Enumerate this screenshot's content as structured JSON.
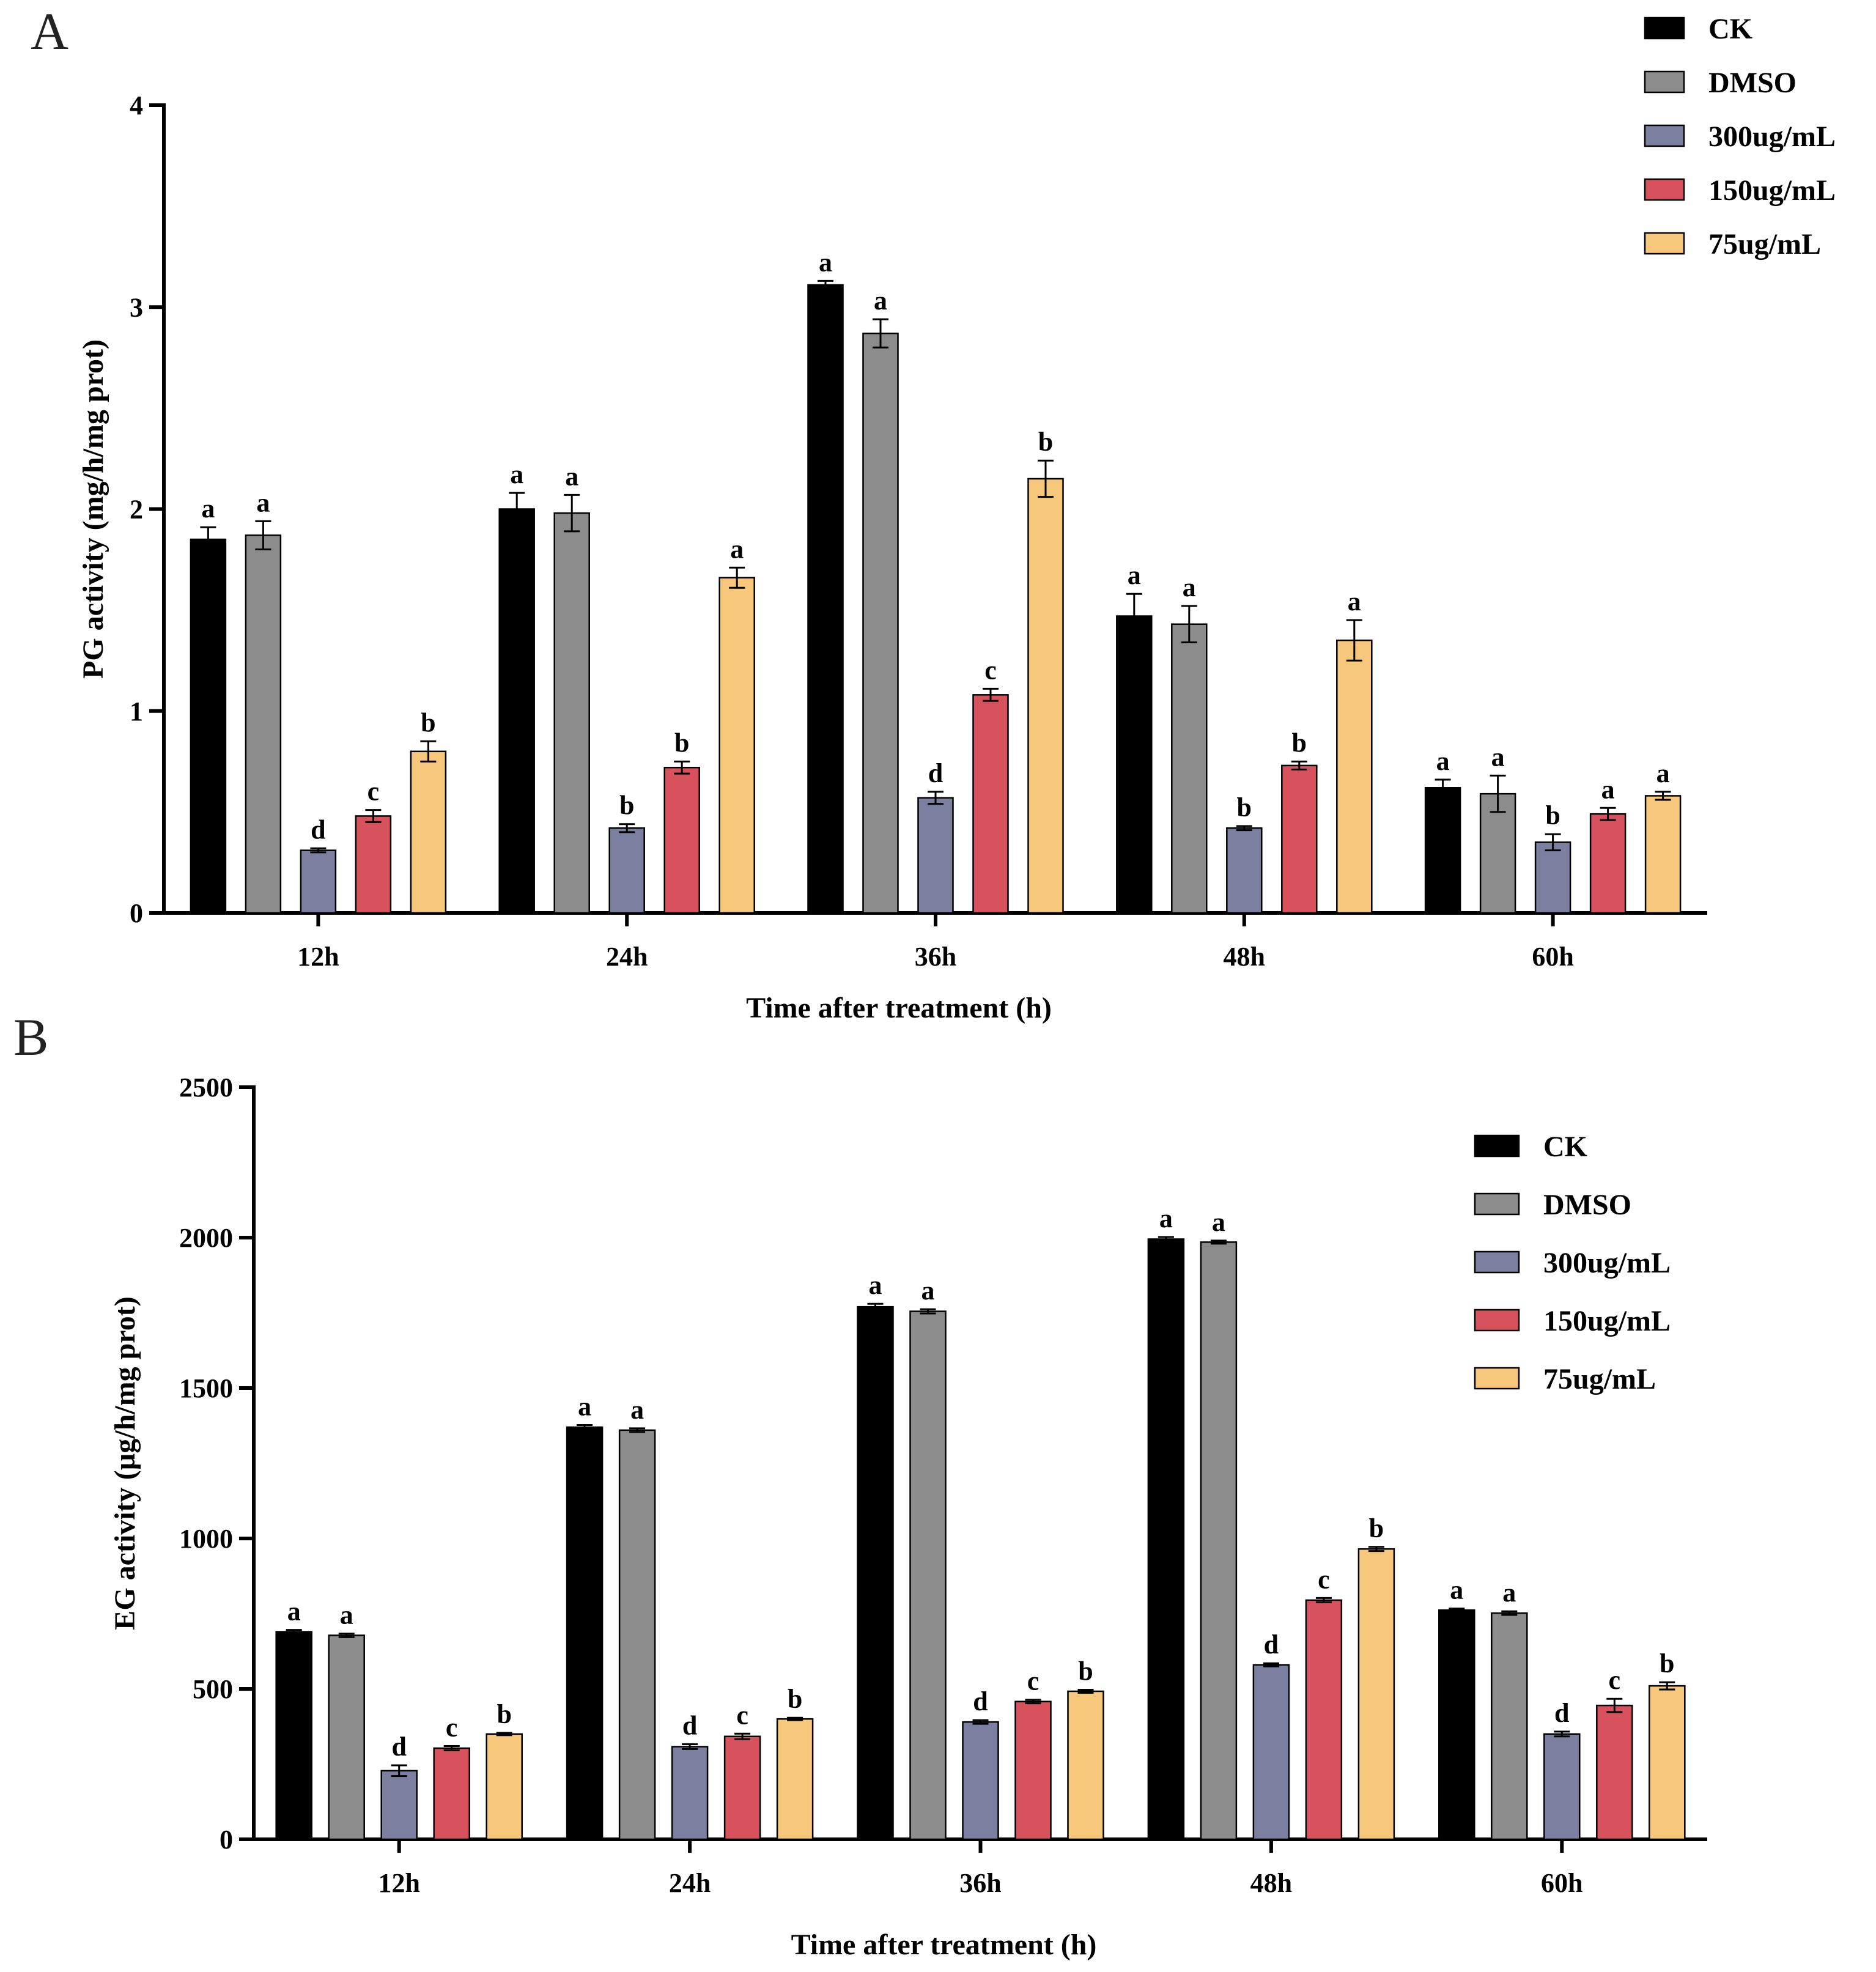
{
  "chart_data": [
    {
      "panel": "A",
      "type": "bar",
      "xlabel": "Time after treatment (h)",
      "ylabel": "PG activity (mg/h/mg prot)",
      "ylim": [
        0,
        4
      ],
      "yticks": [
        0,
        1,
        2,
        3,
        4
      ],
      "categories": [
        "12h",
        "24h",
        "36h",
        "48h",
        "60h"
      ],
      "legend_position": "top-right",
      "series": [
        {
          "name": "CK",
          "color": "#000000",
          "values": [
            1.85,
            2.0,
            3.11,
            1.47,
            0.62
          ],
          "errors": [
            0.06,
            0.08,
            0.02,
            0.11,
            0.04
          ],
          "labels": [
            "a",
            "a",
            "a",
            "a",
            "a"
          ]
        },
        {
          "name": "DMSO",
          "color": "#8c8c8c",
          "values": [
            1.87,
            1.98,
            2.87,
            1.43,
            0.59
          ],
          "errors": [
            0.07,
            0.09,
            0.07,
            0.09,
            0.09
          ],
          "labels": [
            "a",
            "a",
            "a",
            "a",
            "a"
          ]
        },
        {
          "name": "300ug/mL",
          "color": "#7b7fa0",
          "values": [
            0.31,
            0.42,
            0.57,
            0.42,
            0.35
          ],
          "errors": [
            0.01,
            0.02,
            0.03,
            0.01,
            0.04
          ],
          "labels": [
            "d",
            "b",
            "d",
            "b",
            "b"
          ]
        },
        {
          "name": "150ug/mL",
          "color": "#d8525e",
          "values": [
            0.48,
            0.72,
            1.08,
            0.73,
            0.49
          ],
          "errors": [
            0.03,
            0.03,
            0.03,
            0.02,
            0.03
          ],
          "labels": [
            "c",
            "b",
            "c",
            "b",
            "a"
          ]
        },
        {
          "name": "75ug/mL",
          "color": "#f7c77c",
          "values": [
            0.8,
            1.66,
            2.15,
            1.35,
            0.58
          ],
          "errors": [
            0.05,
            0.05,
            0.09,
            0.1,
            0.02
          ],
          "labels": [
            "b",
            "a",
            "b",
            "a",
            "a"
          ]
        }
      ]
    },
    {
      "panel": "B",
      "type": "bar",
      "xlabel": "Time after treatment (h)",
      "ylabel": "EG activity (µg/h/mg prot)",
      "ylim": [
        0,
        2500
      ],
      "yticks": [
        0,
        500,
        1000,
        1500,
        2000,
        2500
      ],
      "categories": [
        "12h",
        "24h",
        "36h",
        "48h",
        "60h"
      ],
      "legend_position": "top-right",
      "series": [
        {
          "name": "CK",
          "color": "#000000",
          "values": [
            690,
            1370,
            1770,
            1995,
            762
          ],
          "errors": [
            6,
            7,
            10,
            7,
            5
          ],
          "labels": [
            "a",
            "a",
            "a",
            "a",
            "a"
          ]
        },
        {
          "name": "DMSO",
          "color": "#8c8c8c",
          "values": [
            678,
            1360,
            1755,
            1985,
            752
          ],
          "errors": [
            6,
            6,
            7,
            5,
            6
          ],
          "labels": [
            "a",
            "a",
            "a",
            "a",
            "a"
          ]
        },
        {
          "name": "300ug/mL",
          "color": "#7b7fa0",
          "values": [
            228,
            308,
            390,
            580,
            350
          ],
          "errors": [
            18,
            8,
            6,
            5,
            8
          ],
          "labels": [
            "d",
            "d",
            "d",
            "d",
            "d"
          ]
        },
        {
          "name": "150ug/mL",
          "color": "#d8525e",
          "values": [
            303,
            342,
            458,
            795,
            445
          ],
          "errors": [
            7,
            9,
            6,
            7,
            22
          ],
          "labels": [
            "c",
            "c",
            "c",
            "c",
            "c"
          ]
        },
        {
          "name": "75ug/mL",
          "color": "#f7c77c",
          "values": [
            350,
            400,
            492,
            965,
            510
          ],
          "errors": [
            4,
            4,
            5,
            7,
            12
          ],
          "labels": [
            "b",
            "b",
            "b",
            "b",
            "b"
          ]
        }
      ]
    }
  ]
}
